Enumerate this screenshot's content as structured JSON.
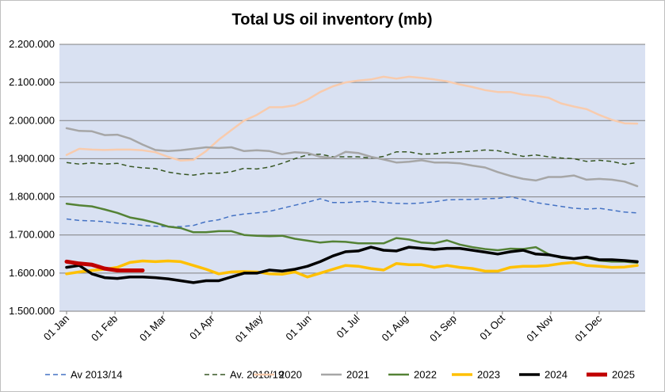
{
  "chart_data": {
    "type": "line",
    "title": "Total US oil inventory (mb)",
    "xlabel": "",
    "ylabel": "",
    "ylim": [
      1500000,
      2200000
    ],
    "y_ticks": [
      1500000,
      1600000,
      1700000,
      1800000,
      1900000,
      2000000,
      2100000,
      2200000
    ],
    "y_tick_labels": [
      "1.500.000",
      "1.600.000",
      "1.700.000",
      "1.800.000",
      "1.900.000",
      "2.000.000",
      "2.100.000",
      "2.200.000"
    ],
    "x_tick_labels": [
      "01 Jan",
      "01 Feb",
      "01 Mar",
      "01 Apr",
      "01 May",
      "01 Jun",
      "01 Jul",
      "01 Aug",
      "01 Sep",
      "01 Oct",
      "01 Nov",
      "01 Dec"
    ],
    "grid": "horizontal",
    "legend_position": "bottom",
    "plot_background": "#d9e1f2",
    "series": [
      {
        "name": "Av 2013/14",
        "color": "#4472c4",
        "dash": "dashed",
        "weight": "thin",
        "values": [
          1742000,
          1738000,
          1737000,
          1735000,
          1731000,
          1729000,
          1725000,
          1723000,
          1722000,
          1722000,
          1725000,
          1735000,
          1740000,
          1750000,
          1755000,
          1758000,
          1762000,
          1770000,
          1778000,
          1786000,
          1795000,
          1785000,
          1785000,
          1787000,
          1788000,
          1785000,
          1783000,
          1782000,
          1784000,
          1787000,
          1792000,
          1793000,
          1793000,
          1795000,
          1796000,
          1800000,
          1793000,
          1785000,
          1780000,
          1775000,
          1770000,
          1768000,
          1770000,
          1765000,
          1760000,
          1758000
        ]
      },
      {
        "name": "Av. 2018/19",
        "color": "#375623",
        "dash": "dashed",
        "weight": "thin",
        "values": [
          1890000,
          1886000,
          1889000,
          1886000,
          1888000,
          1880000,
          1876000,
          1874000,
          1865000,
          1860000,
          1857000,
          1862000,
          1862000,
          1866000,
          1875000,
          1873000,
          1878000,
          1888000,
          1900000,
          1910000,
          1912000,
          1905000,
          1905000,
          1905000,
          1902000,
          1906000,
          1918000,
          1918000,
          1912000,
          1913000,
          1916000,
          1918000,
          1920000,
          1923000,
          1921000,
          1914000,
          1906000,
          1910000,
          1905000,
          1902000,
          1900000,
          1893000,
          1896000,
          1893000,
          1885000,
          1890000
        ]
      },
      {
        "name": "2020",
        "color": "#f8cbad",
        "dash": "solid",
        "weight": "medium",
        "values": [
          1910000,
          1926000,
          1924000,
          1923000,
          1924000,
          1924000,
          1922000,
          1917000,
          1905000,
          1895000,
          1897000,
          1920000,
          1950000,
          1975000,
          2000000,
          2015000,
          2035000,
          2035000,
          2040000,
          2055000,
          2075000,
          2090000,
          2100000,
          2105000,
          2108000,
          2115000,
          2110000,
          2115000,
          2112000,
          2108000,
          2103000,
          2095000,
          2088000,
          2080000,
          2075000,
          2075000,
          2068000,
          2065000,
          2060000,
          2045000,
          2037000,
          2030000,
          2015000,
          2002000,
          1993000,
          1992000
        ]
      },
      {
        "name": "2021",
        "color": "#a6a6a6",
        "dash": "solid",
        "weight": "medium",
        "values": [
          1980000,
          1973000,
          1972000,
          1962000,
          1963000,
          1953000,
          1937000,
          1923000,
          1920000,
          1922000,
          1926000,
          1930000,
          1928000,
          1930000,
          1920000,
          1922000,
          1920000,
          1912000,
          1917000,
          1915000,
          1905000,
          1902000,
          1918000,
          1915000,
          1905000,
          1898000,
          1890000,
          1892000,
          1896000,
          1890000,
          1890000,
          1888000,
          1882000,
          1877000,
          1865000,
          1855000,
          1847000,
          1843000,
          1852000,
          1852000,
          1856000,
          1845000,
          1847000,
          1845000,
          1840000,
          1828000
        ]
      },
      {
        "name": "2022",
        "color": "#548235",
        "dash": "solid",
        "weight": "medium",
        "values": [
          1782000,
          1778000,
          1775000,
          1767000,
          1758000,
          1746000,
          1740000,
          1732000,
          1722000,
          1718000,
          1707000,
          1707000,
          1710000,
          1710000,
          1700000,
          1698000,
          1697000,
          1698000,
          1690000,
          1685000,
          1680000,
          1683000,
          1682000,
          1678000,
          1678000,
          1678000,
          1692000,
          1688000,
          1680000,
          1678000,
          1686000,
          1675000,
          1668000,
          1663000,
          1660000,
          1664000,
          1663000,
          1668000,
          1650000,
          1640000,
          1638000,
          1640000,
          1633000,
          1630000,
          1630000,
          1627000
        ]
      },
      {
        "name": "2023",
        "color": "#ffc000",
        "dash": "solid",
        "weight": "thick",
        "values": [
          1598000,
          1603000,
          1607000,
          1610000,
          1615000,
          1628000,
          1632000,
          1630000,
          1632000,
          1630000,
          1620000,
          1610000,
          1598000,
          1603000,
          1604000,
          1603000,
          1598000,
          1597000,
          1603000,
          1590000,
          1600000,
          1610000,
          1620000,
          1618000,
          1612000,
          1608000,
          1625000,
          1622000,
          1622000,
          1615000,
          1620000,
          1615000,
          1612000,
          1605000,
          1605000,
          1615000,
          1618000,
          1618000,
          1620000,
          1625000,
          1628000,
          1620000,
          1618000,
          1615000,
          1616000,
          1620000
        ]
      },
      {
        "name": "2024",
        "color": "#000000",
        "dash": "solid",
        "weight": "thick",
        "values": [
          1615000,
          1620000,
          1598000,
          1588000,
          1586000,
          1590000,
          1590000,
          1588000,
          1585000,
          1580000,
          1575000,
          1580000,
          1580000,
          1590000,
          1600000,
          1600000,
          1608000,
          1605000,
          1610000,
          1618000,
          1630000,
          1645000,
          1656000,
          1658000,
          1668000,
          1660000,
          1658000,
          1668000,
          1665000,
          1662000,
          1665000,
          1665000,
          1660000,
          1655000,
          1650000,
          1656000,
          1660000,
          1650000,
          1648000,
          1642000,
          1638000,
          1642000,
          1635000,
          1635000,
          1633000,
          1630000
        ]
      },
      {
        "name": "2025",
        "color": "#c00000",
        "dash": "solid",
        "weight": "xthick",
        "values": [
          1630000,
          1625000,
          1622000,
          1612000,
          1607000,
          1607000,
          1607000
        ]
      }
    ]
  }
}
